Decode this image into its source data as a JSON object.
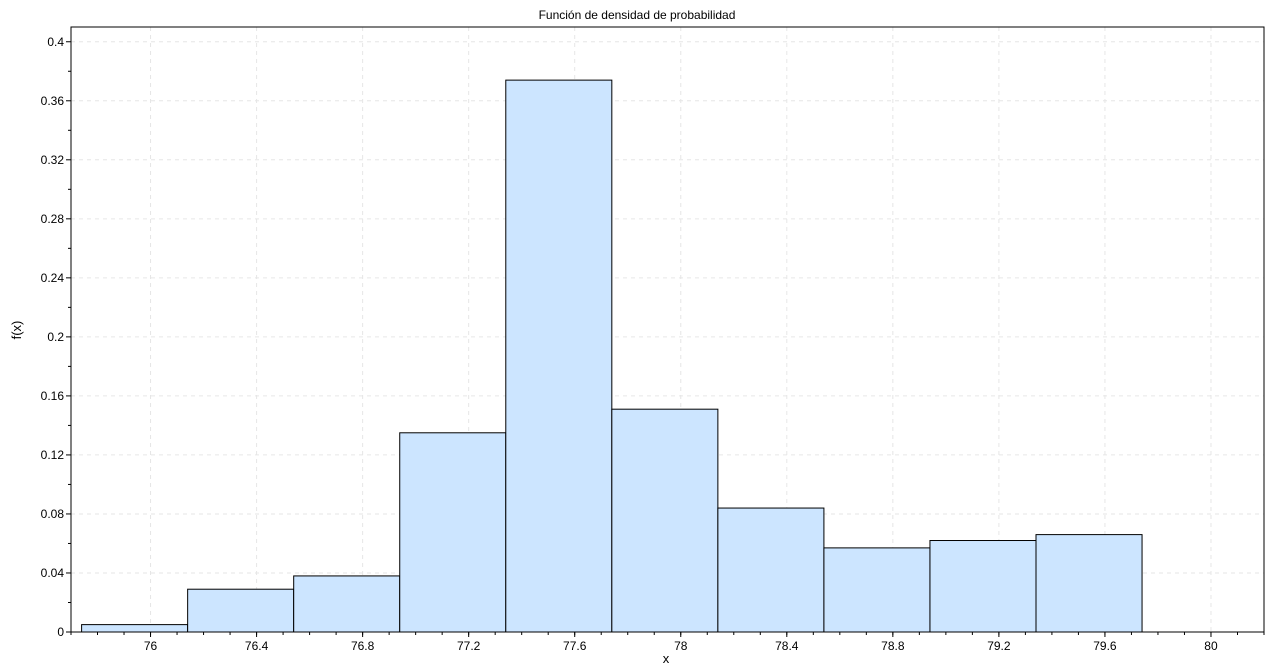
{
  "chart_data": {
    "type": "bar",
    "title": "Función de densidad de probabilidad",
    "xlabel": "x",
    "ylabel": "f(x)",
    "xlim": [
      75.7,
      80.2
    ],
    "ylim": [
      0,
      0.41
    ],
    "grid": true,
    "bar_fill": "#cce5ff",
    "bar_stroke": "#000000",
    "grid_color": "#e6e6e6",
    "x_ticks": [
      76,
      76.4,
      76.8,
      77.2,
      77.6,
      78,
      78.4,
      78.8,
      79.2,
      79.6,
      80
    ],
    "y_ticks": [
      0,
      0.04,
      0.08,
      0.12,
      0.16,
      0.2,
      0.24,
      0.28,
      0.32,
      0.36,
      0.4
    ],
    "bins": [
      {
        "x0": 75.74,
        "x1": 76.14,
        "value": 0.005
      },
      {
        "x0": 76.14,
        "x1": 76.54,
        "value": 0.029
      },
      {
        "x0": 76.54,
        "x1": 76.94,
        "value": 0.038
      },
      {
        "x0": 76.94,
        "x1": 77.34,
        "value": 0.135
      },
      {
        "x0": 77.34,
        "x1": 77.74,
        "value": 0.374
      },
      {
        "x0": 77.74,
        "x1": 78.14,
        "value": 0.151
      },
      {
        "x0": 78.14,
        "x1": 78.54,
        "value": 0.084
      },
      {
        "x0": 78.54,
        "x1": 78.94,
        "value": 0.057
      },
      {
        "x0": 78.94,
        "x1": 79.34,
        "value": 0.062
      },
      {
        "x0": 79.34,
        "x1": 79.74,
        "value": 0.066
      }
    ]
  }
}
